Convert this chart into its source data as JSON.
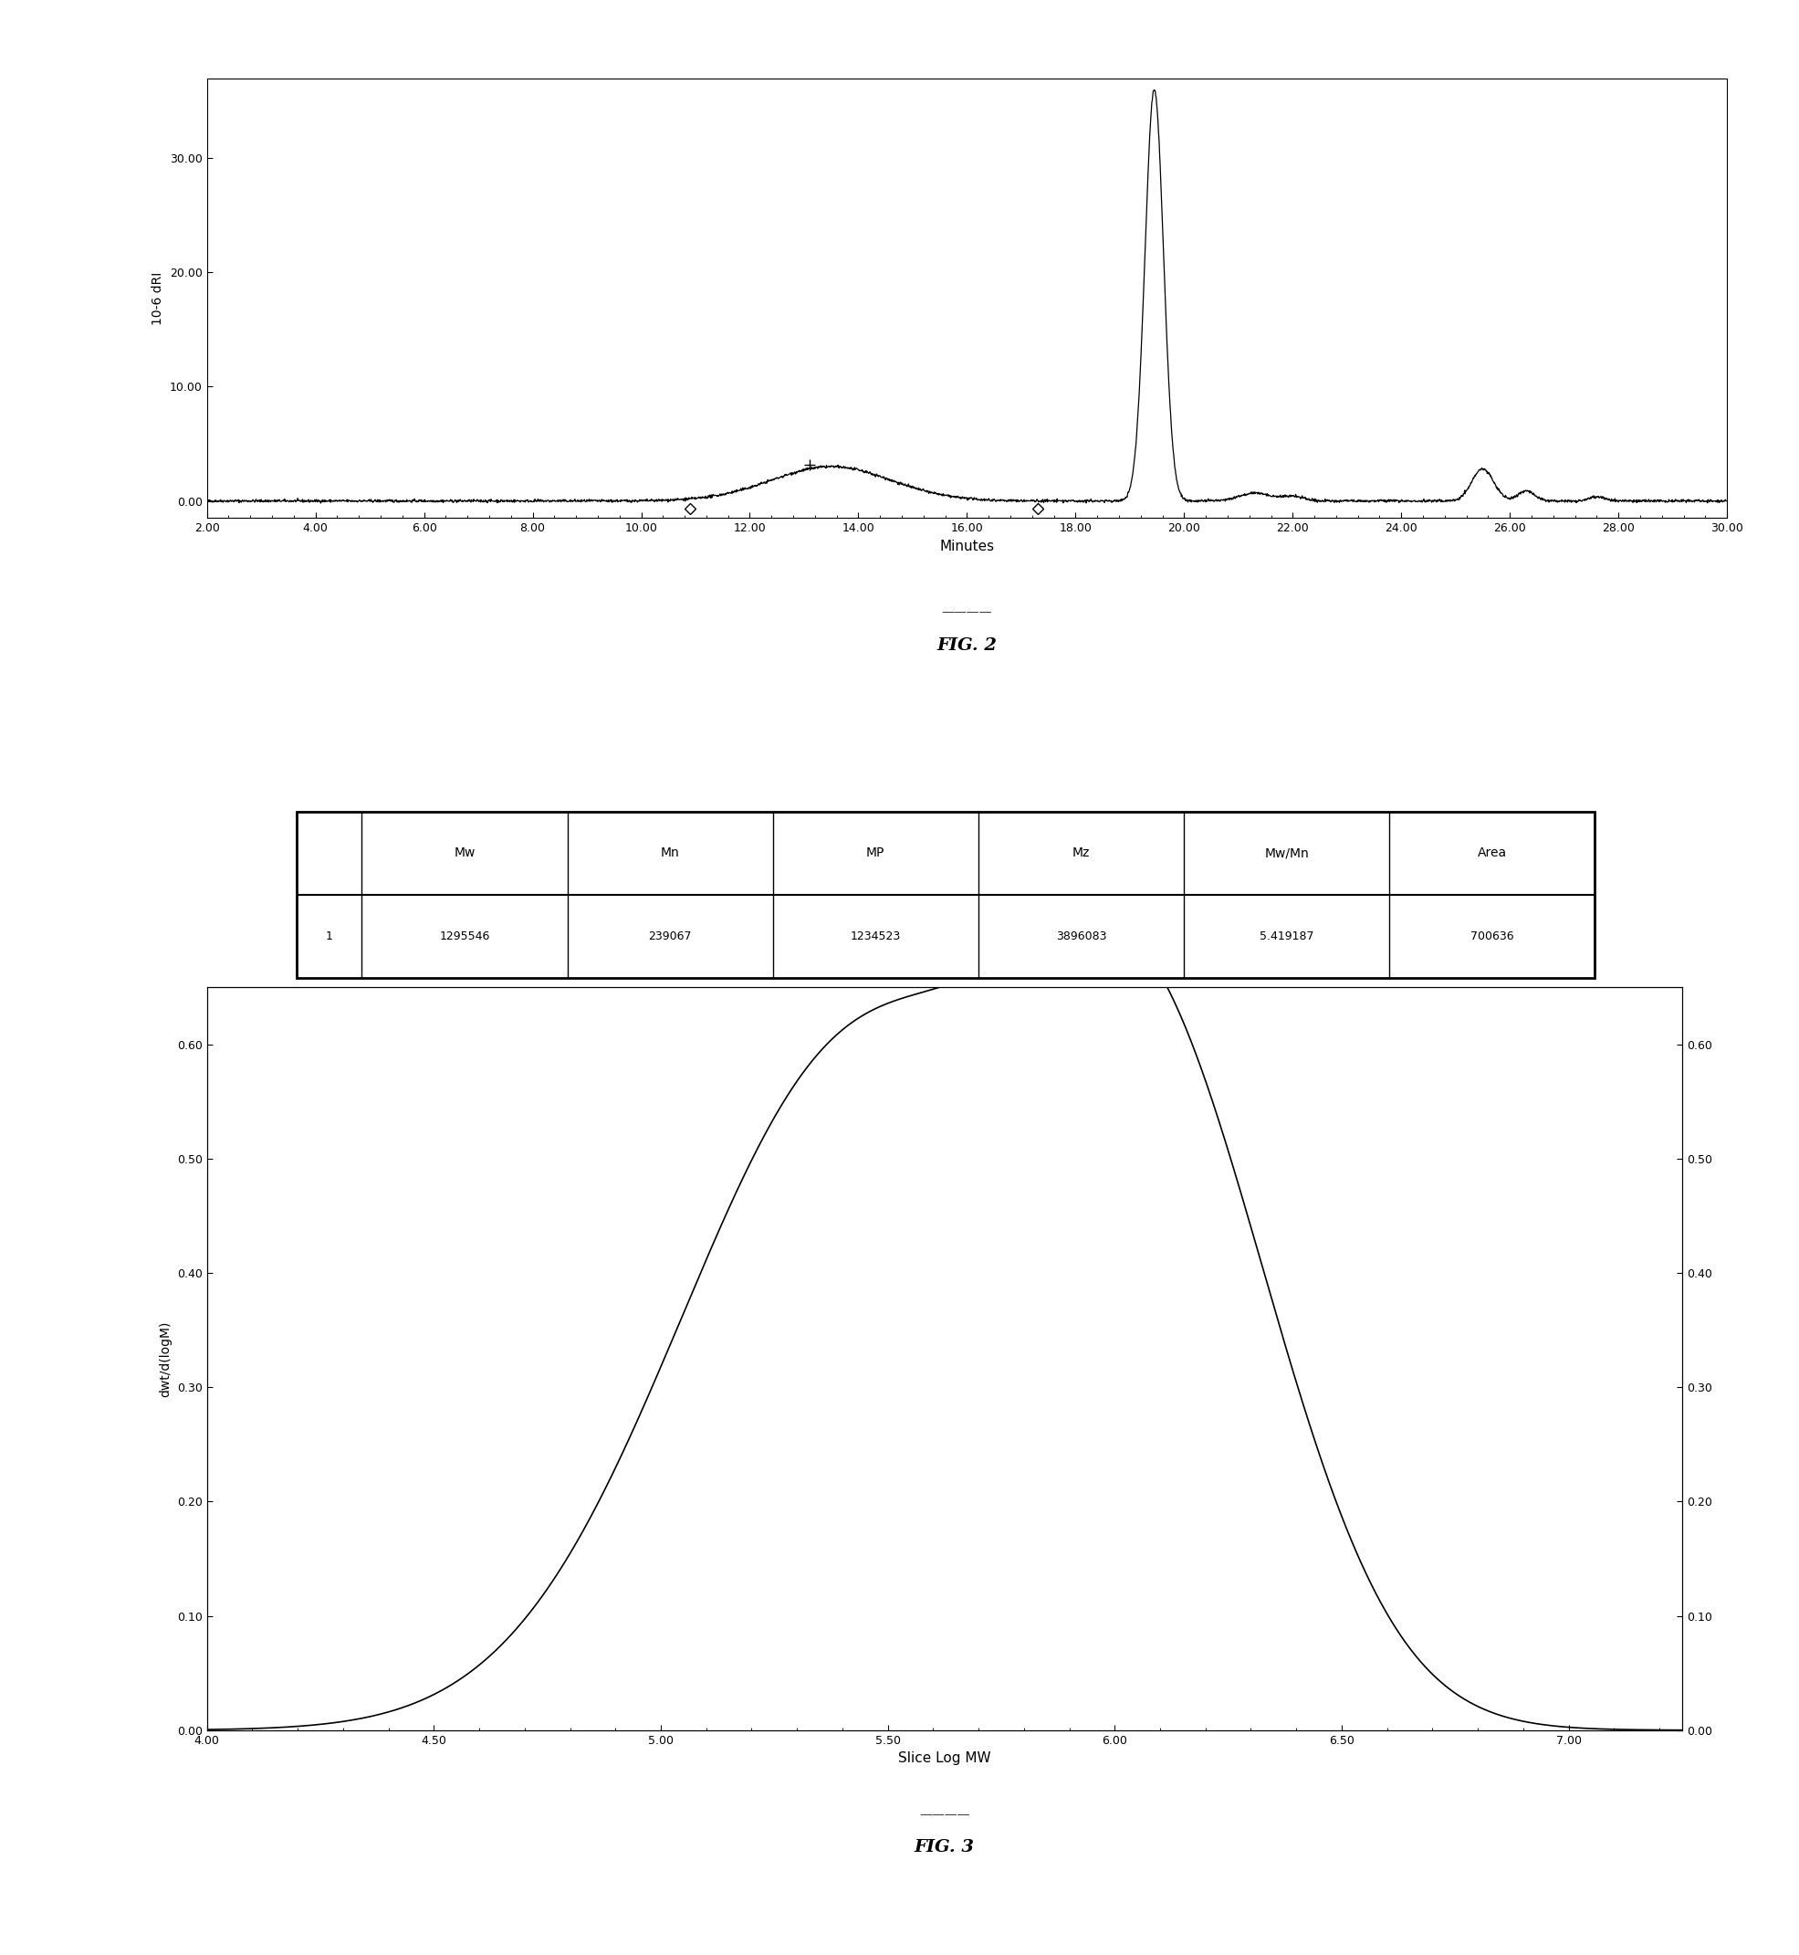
{
  "fig2": {
    "title": "FIG. 2",
    "xlabel": "Minutes",
    "ylabel": "10-6 dRI",
    "xlim": [
      2.0,
      30.0
    ],
    "ylim": [
      -1.5,
      37.0
    ],
    "xticks": [
      2.0,
      4.0,
      6.0,
      8.0,
      10.0,
      12.0,
      14.0,
      16.0,
      18.0,
      20.0,
      22.0,
      24.0,
      26.0,
      28.0,
      30.0
    ],
    "yticks": [
      0.0,
      10.0,
      20.0,
      30.0
    ],
    "diamond1_x": 10.9,
    "diamond2_x": 17.3,
    "cross_x": 13.1,
    "cross_y": 3.15
  },
  "fig3": {
    "title": "FIG. 3",
    "xlabel": "Slice Log MW",
    "ylabel": "dwt/d(logM)",
    "xlim": [
      4.0,
      7.25
    ],
    "ylim": [
      0.0,
      0.65
    ],
    "xticks": [
      4.0,
      4.5,
      5.0,
      5.5,
      6.0,
      6.5,
      7.0
    ],
    "yticks_left": [
      0.0,
      0.1,
      0.2,
      0.3,
      0.4,
      0.5,
      0.6
    ],
    "yticks_right": [
      0.0,
      0.1,
      0.2,
      0.3,
      0.4,
      0.5,
      0.6
    ],
    "table_headers": [
      "",
      "Mw",
      "Mn",
      "MP",
      "Mz",
      "Mw/Mn",
      "Area"
    ],
    "table_row": [
      "1",
      "1295546",
      "239067",
      "1234523",
      "3896083",
      "5.419187",
      "700636"
    ]
  }
}
